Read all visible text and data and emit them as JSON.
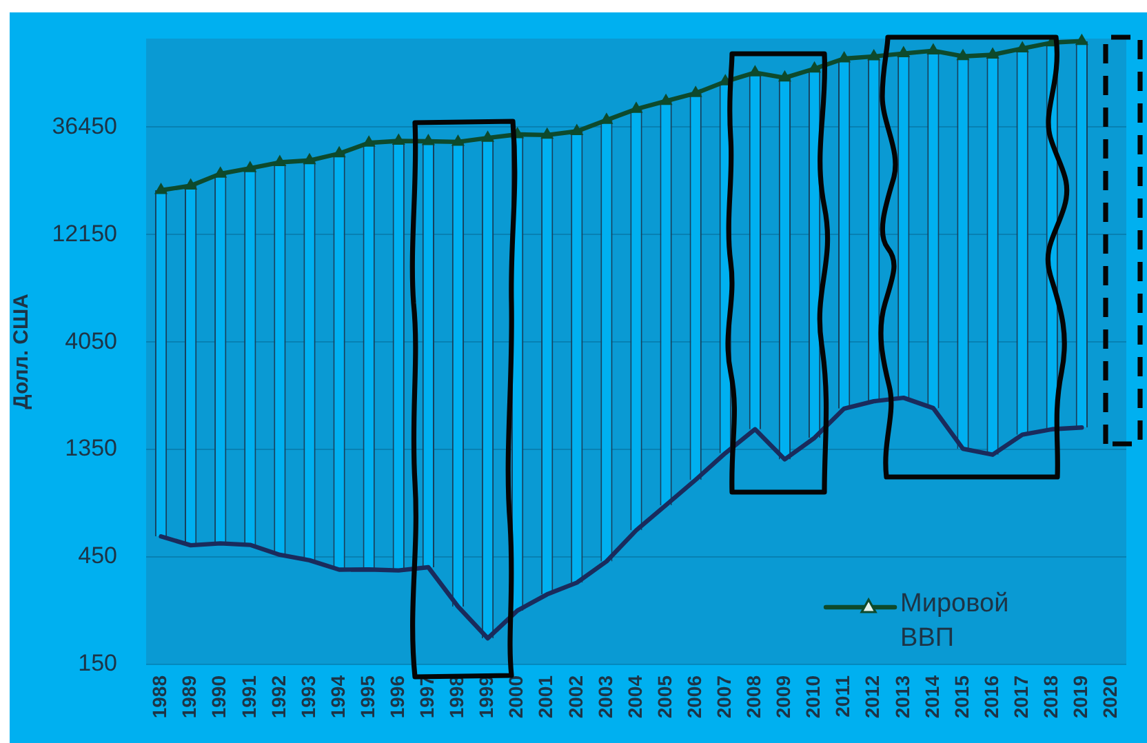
{
  "chart_data": {
    "type": "line",
    "ylabel": "Долл. США",
    "categories": [
      "1988",
      "1989",
      "1990",
      "1991",
      "1992",
      "1993",
      "1994",
      "1995",
      "1996",
      "1997",
      "1998",
      "1999",
      "2000",
      "2001",
      "2002",
      "2003",
      "2004",
      "2005",
      "2006",
      "2007",
      "2008",
      "2009",
      "2010",
      "2011",
      "2012",
      "2013",
      "2014",
      "2015",
      "2016",
      "2017",
      "2018",
      "2019",
      "2020"
    ],
    "series": [
      {
        "type": "bar",
        "color": "#00b0f0",
        "base": [
          555,
          507,
          517,
          509,
          460,
          435,
          395,
          396,
          392,
          405,
          271,
          196,
          260,
          307,
          346,
          430,
          591,
          764,
          990,
          1300,
          1660,
          1220,
          1520,
          2050,
          2210,
          2290,
          2060,
          1360,
          1280,
          1570,
          1660,
          1690,
          null
        ],
        "values": [
          18545,
          19493,
          22083,
          23391,
          24940,
          25465,
          27405,
          30604,
          31208,
          31095,
          31029,
          32404,
          33540,
          33293,
          34554,
          38670,
          43209,
          46736,
          50510,
          56700,
          61940,
          59080,
          64580,
          71350,
          72790,
          75010,
          77440,
          73740,
          75020,
          79730,
          84740,
          86010,
          null
        ]
      },
      {
        "color": "#1a2b5c",
        "marker": "none",
        "values": [
          555,
          507,
          517,
          509,
          460,
          435,
          395,
          396,
          392,
          405,
          271,
          196,
          260,
          307,
          346,
          430,
          591,
          764,
          990,
          1300,
          1660,
          1220,
          1520,
          2050,
          2210,
          2290,
          2060,
          1360,
          1280,
          1570,
          1660,
          1690,
          null
        ]
      },
      {
        "name": "Мировой ВВП",
        "color": "#0e4a2c",
        "marker": "triangle",
        "values": [
          19100,
          20000,
          22600,
          23900,
          25400,
          25900,
          27800,
          31000,
          31600,
          31500,
          31300,
          32600,
          33800,
          33600,
          34900,
          39100,
          43800,
          47500,
          51500,
          58000,
          63600,
          60300,
          66100,
          73400,
          75000,
          77300,
          79500,
          75100,
          76300,
          81300,
          86400,
          87700,
          null
        ]
      }
    ],
    "log": "y",
    "ylim": [
      150,
      90000
    ],
    "yticks": [
      150,
      450,
      1350,
      4050,
      12150,
      36450
    ],
    "grid": "y",
    "legend": "bottom right"
  }
}
